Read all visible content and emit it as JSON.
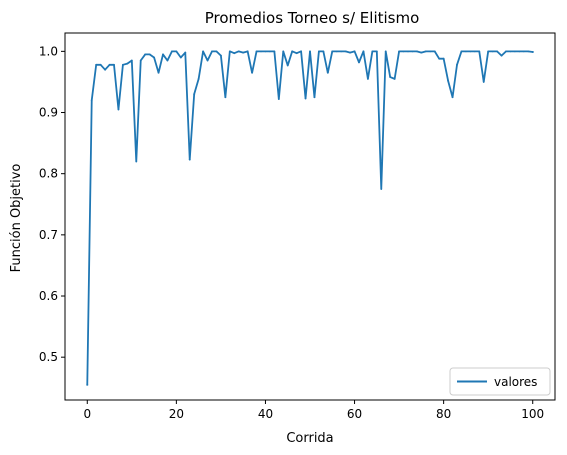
{
  "chart_data": {
    "type": "line",
    "title": "Promedios Torneo s/ Elitismo",
    "xlabel": "Corrida",
    "ylabel": "Función Objetivo",
    "xlim": [
      -5,
      105
    ],
    "ylim": [
      0.43,
      1.03
    ],
    "xticks": [
      0,
      20,
      40,
      60,
      80,
      100
    ],
    "yticks": [
      0.5,
      0.6,
      0.7,
      0.8,
      0.9,
      1.0
    ],
    "xtick_labels": [
      "0",
      "20",
      "40",
      "60",
      "80",
      "100"
    ],
    "ytick_labels": [
      "0.5",
      "0.6",
      "0.7",
      "0.8",
      "0.9",
      "1.0"
    ],
    "grid": false,
    "legend_position": "lower-right",
    "series": [
      {
        "name": "valores",
        "color": "#1f77b4",
        "x": [
          0,
          1,
          2,
          3,
          4,
          5,
          6,
          7,
          8,
          9,
          10,
          11,
          12,
          13,
          14,
          15,
          16,
          17,
          18,
          19,
          20,
          21,
          22,
          23,
          24,
          25,
          26,
          27,
          28,
          29,
          30,
          31,
          32,
          33,
          34,
          35,
          36,
          37,
          38,
          39,
          40,
          41,
          42,
          43,
          44,
          45,
          46,
          47,
          48,
          49,
          50,
          51,
          52,
          53,
          54,
          55,
          56,
          57,
          58,
          59,
          60,
          61,
          62,
          63,
          64,
          65,
          66,
          67,
          68,
          69,
          70,
          71,
          72,
          73,
          74,
          75,
          76,
          77,
          78,
          79,
          80,
          81,
          82,
          83,
          84,
          85,
          86,
          87,
          88,
          89,
          90,
          91,
          92,
          93,
          94,
          95,
          96,
          97,
          98,
          99,
          100
        ],
        "y": [
          0.455,
          0.92,
          0.978,
          0.978,
          0.97,
          0.978,
          0.978,
          0.905,
          0.978,
          0.98,
          0.985,
          0.82,
          0.985,
          0.995,
          0.995,
          0.99,
          0.965,
          0.995,
          0.985,
          1.0,
          1.0,
          0.99,
          0.998,
          0.823,
          0.93,
          0.955,
          1.0,
          0.985,
          1.0,
          1.0,
          0.993,
          0.925,
          1.0,
          0.997,
          1.0,
          0.998,
          1.0,
          0.965,
          1.0,
          1.0,
          1.0,
          1.0,
          1.0,
          0.922,
          1.0,
          0.977,
          1.0,
          0.997,
          1.0,
          0.923,
          1.0,
          0.925,
          1.0,
          1.0,
          0.965,
          1.0,
          1.0,
          1.0,
          1.0,
          0.998,
          1.0,
          0.982,
          1.0,
          0.955,
          1.0,
          1.0,
          0.775,
          1.0,
          0.958,
          0.955,
          1.0,
          1.0,
          1.0,
          1.0,
          1.0,
          0.998,
          1.0,
          1.0,
          1.0,
          0.988,
          0.988,
          0.952,
          0.925,
          0.978,
          1.0,
          1.0,
          1.0,
          1.0,
          1.0,
          0.95,
          1.0,
          1.0,
          1.0,
          0.993,
          1.0,
          1.0,
          1.0,
          1.0,
          1.0,
          1.0,
          0.999
        ]
      }
    ]
  }
}
